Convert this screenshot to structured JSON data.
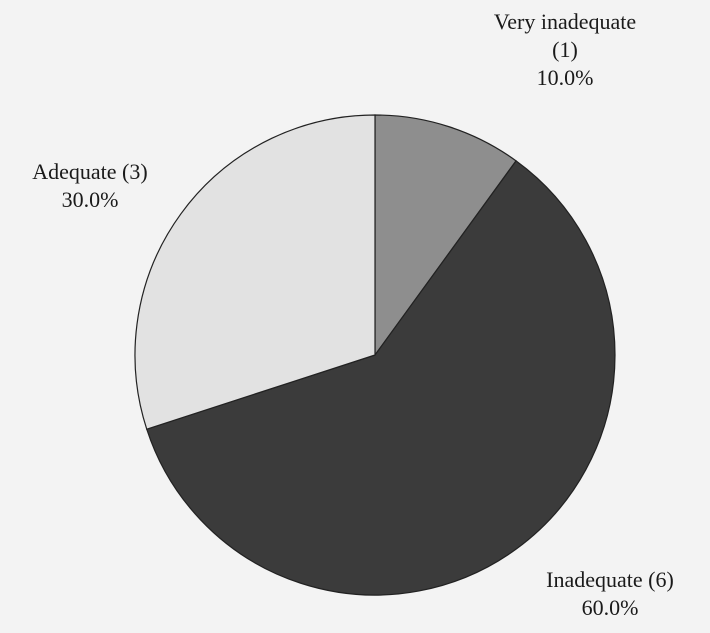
{
  "chart_data": {
    "type": "pie",
    "categories": [
      "Very inadequate (1)",
      "Inadequate (6)",
      "Adequate (3)"
    ],
    "values": [
      10,
      60,
      30
    ],
    "value_labels": [
      "10.0%",
      "60.0%",
      "30.0%"
    ],
    "colors": [
      "#8e8e8e",
      "#3b3b3b",
      "#e2e2e2"
    ]
  }
}
